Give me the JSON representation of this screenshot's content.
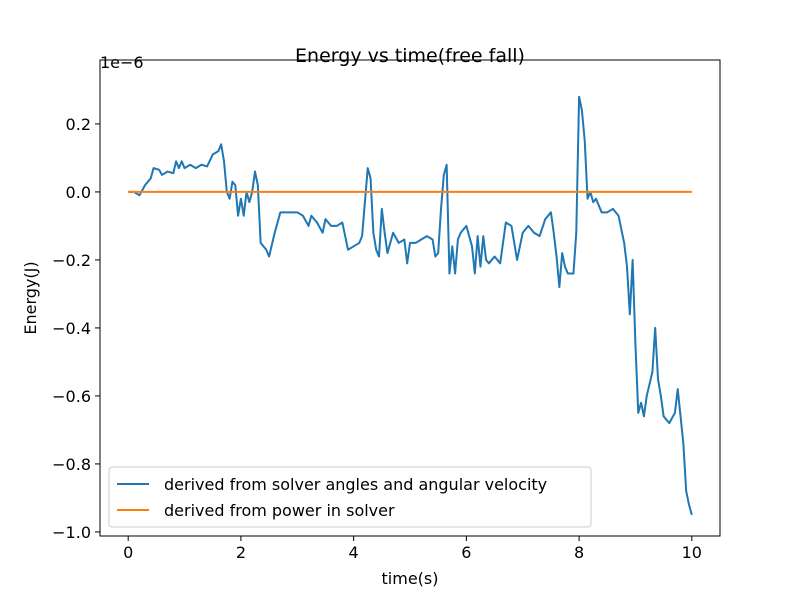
{
  "chart_data": {
    "type": "line",
    "title": "Energy vs time(free fall)",
    "x_label": "time(s)",
    "y_label": "Energy(J)",
    "y_offset_label": "1e−6",
    "xlim": [
      -0.5,
      10.5
    ],
    "ylim": [
      -1.012,
      0.388
    ],
    "xticks": [
      0,
      2,
      4,
      6,
      8,
      10
    ],
    "yticks": [
      {
        "value": -1.0,
        "label": "−1.0"
      },
      {
        "value": -0.8,
        "label": "−0.8"
      },
      {
        "value": -0.6,
        "label": "−0.6"
      },
      {
        "value": -0.4,
        "label": "−0.4"
      },
      {
        "value": -0.2,
        "label": "−0.2"
      },
      {
        "value": 0.0,
        "label": "0.0"
      },
      {
        "value": 0.2,
        "label": "0.2"
      }
    ],
    "grid": false,
    "legend": "lower left",
    "series": [
      {
        "name": "derived from solver angles and angular velocity",
        "color": "#1f77b4",
        "x": [
          0,
          0.1,
          0.2,
          0.3,
          0.4,
          0.45,
          0.55,
          0.6,
          0.7,
          0.8,
          0.85,
          0.9,
          0.95,
          1.0,
          1.1,
          1.2,
          1.3,
          1.4,
          1.5,
          1.6,
          1.65,
          1.7,
          1.75,
          1.8,
          1.85,
          1.9,
          1.95,
          2.0,
          2.05,
          2.1,
          2.15,
          2.2,
          2.25,
          2.3,
          2.35,
          2.45,
          2.5,
          2.6,
          2.7,
          2.8,
          2.9,
          3.0,
          3.1,
          3.2,
          3.25,
          3.35,
          3.45,
          3.5,
          3.6,
          3.7,
          3.8,
          3.9,
          4.0,
          4.1,
          4.15,
          4.2,
          4.25,
          4.3,
          4.35,
          4.4,
          4.45,
          4.5,
          4.55,
          4.6,
          4.7,
          4.8,
          4.9,
          4.95,
          5.0,
          5.1,
          5.2,
          5.3,
          5.4,
          5.45,
          5.5,
          5.55,
          5.6,
          5.65,
          5.7,
          5.75,
          5.8,
          5.85,
          5.9,
          6.0,
          6.1,
          6.15,
          6.2,
          6.25,
          6.3,
          6.35,
          6.4,
          6.5,
          6.6,
          6.7,
          6.8,
          6.9,
          7.0,
          7.1,
          7.2,
          7.3,
          7.4,
          7.5,
          7.55,
          7.6,
          7.65,
          7.7,
          7.75,
          7.8,
          7.9,
          7.95,
          8.0,
          8.05,
          8.1,
          8.15,
          8.2,
          8.25,
          8.3,
          8.4,
          8.5,
          8.6,
          8.7,
          8.8,
          8.85,
          8.9,
          8.95,
          9.0,
          9.05,
          9.1,
          9.15,
          9.2,
          9.3,
          9.35,
          9.4,
          9.45,
          9.5,
          9.6,
          9.7,
          9.75,
          9.85,
          9.9,
          9.95,
          10.0
        ],
        "values": [
          0,
          0.0,
          -0.01,
          0.02,
          0.04,
          0.07,
          0.065,
          0.05,
          0.06,
          0.055,
          0.09,
          0.07,
          0.09,
          0.07,
          0.08,
          0.07,
          0.08,
          0.075,
          0.11,
          0.12,
          0.14,
          0.09,
          0.0,
          -0.02,
          0.03,
          0.02,
          -0.07,
          -0.02,
          -0.07,
          0.0,
          -0.03,
          0.0,
          0.06,
          0.02,
          -0.15,
          -0.17,
          -0.19,
          -0.12,
          -0.06,
          -0.06,
          -0.06,
          -0.06,
          -0.07,
          -0.1,
          -0.07,
          -0.09,
          -0.12,
          -0.08,
          -0.1,
          -0.1,
          -0.09,
          -0.17,
          -0.16,
          -0.15,
          -0.13,
          -0.03,
          0.07,
          0.04,
          -0.12,
          -0.17,
          -0.19,
          -0.05,
          -0.12,
          -0.18,
          -0.12,
          -0.15,
          -0.14,
          -0.21,
          -0.15,
          -0.15,
          -0.14,
          -0.13,
          -0.14,
          -0.19,
          -0.18,
          -0.05,
          0.05,
          0.08,
          -0.24,
          -0.16,
          -0.24,
          -0.14,
          -0.12,
          -0.1,
          -0.16,
          -0.24,
          -0.13,
          -0.22,
          -0.13,
          -0.2,
          -0.21,
          -0.19,
          -0.21,
          -0.09,
          -0.1,
          -0.2,
          -0.12,
          -0.1,
          -0.12,
          -0.13,
          -0.08,
          -0.06,
          -0.12,
          -0.19,
          -0.28,
          -0.18,
          -0.22,
          -0.24,
          -0.24,
          -0.12,
          0.28,
          0.24,
          0.15,
          -0.02,
          0.0,
          -0.03,
          -0.02,
          -0.06,
          -0.06,
          -0.05,
          -0.07,
          -0.15,
          -0.22,
          -0.36,
          -0.2,
          -0.45,
          -0.65,
          -0.62,
          -0.66,
          -0.6,
          -0.53,
          -0.4,
          -0.55,
          -0.6,
          -0.66,
          -0.68,
          -0.65,
          -0.58,
          -0.74,
          -0.88,
          -0.92,
          -0.95
        ]
      },
      {
        "name": "derived from power in solver",
        "color": "#ff7f0e",
        "x": [
          0,
          10
        ],
        "values": [
          0,
          0
        ]
      }
    ]
  }
}
